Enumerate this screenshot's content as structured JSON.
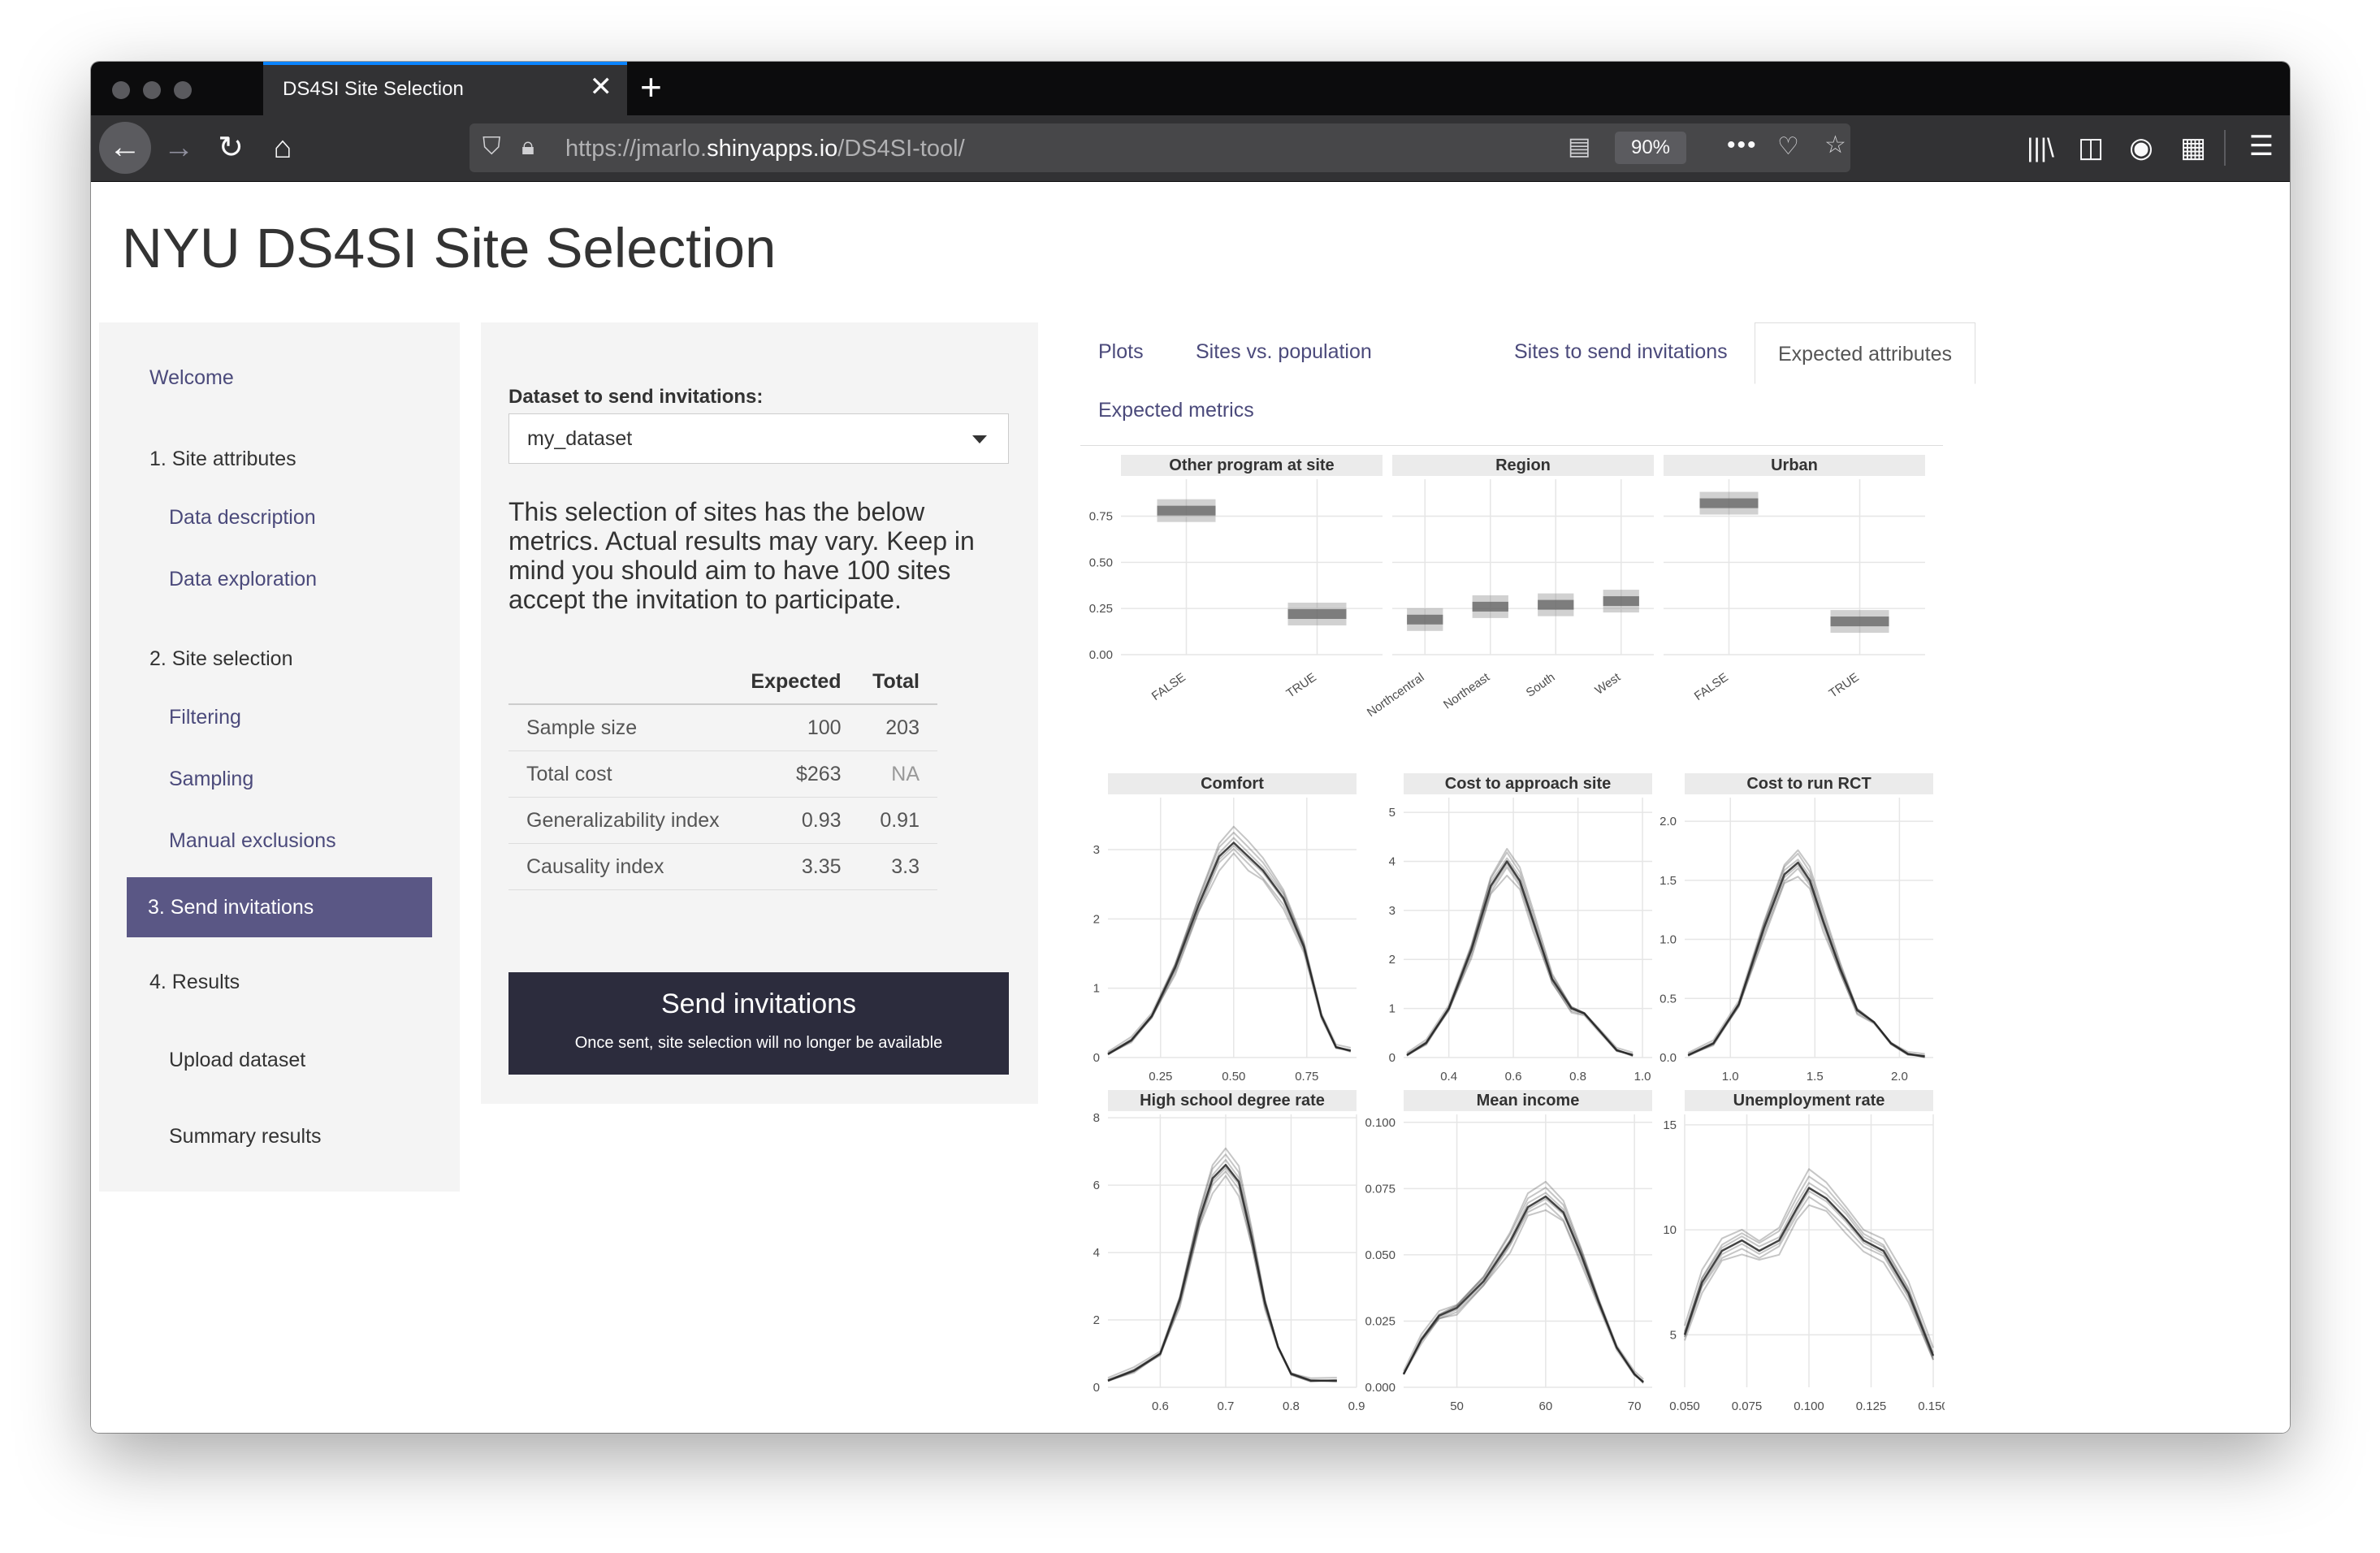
{
  "browser": {
    "tab_title": "DS4SI Site Selection",
    "tab_close": "✕",
    "new_tab": "+",
    "url_prefix": "https://jmarlo.",
    "url_host": "shinyapps.io",
    "url_path": "/DS4SI-tool/",
    "zoom": "90%",
    "more": "•••",
    "menu": "☰"
  },
  "page": {
    "title": "NYU DS4SI Site Selection"
  },
  "sidebar": {
    "welcome": "Welcome",
    "site_attributes": "1. Site attributes",
    "data_description": "Data description",
    "data_exploration": "Data exploration",
    "site_selection": "2. Site selection",
    "filtering": "Filtering",
    "sampling": "Sampling",
    "manual_exclusions": "Manual exclusions",
    "send_invitations": "3. Send invitations",
    "results": "4. Results",
    "upload_dataset": "Upload dataset",
    "summary_results": "Summary results"
  },
  "control": {
    "dataset_label": "Dataset to send invitations:",
    "dataset_value": "my_dataset",
    "description": "This selection of sites has the below metrics. Actual results may vary. Keep in mind you should aim to have 100 sites accept the invitation to participate.",
    "table": {
      "headers": [
        "",
        "Expected",
        "Total"
      ],
      "rows": [
        [
          "Sample size",
          "100",
          "203"
        ],
        [
          "Total cost",
          "$263",
          "NA"
        ],
        [
          "Generalizability index",
          "0.93",
          "0.91"
        ],
        [
          "Causality index",
          "3.35",
          "3.3"
        ]
      ]
    },
    "send_button": "Send invitations",
    "send_note": "Once sent, site selection will no longer be available"
  },
  "tabs": {
    "plots": "Plots",
    "sites_vs_population": "Sites vs. population",
    "sites_to_send": "Sites to send invitations",
    "expected_attributes": "Expected attributes",
    "expected_metrics": "Expected metrics"
  },
  "chart_data": [
    {
      "type": "bar",
      "title": "Other program at site",
      "categories": [
        "FALSE",
        "TRUE"
      ],
      "values": [
        0.78,
        0.22
      ],
      "yticks": [
        "0.00",
        "0.25",
        "0.50",
        "0.75"
      ],
      "ylim": [
        0,
        0.95
      ]
    },
    {
      "type": "bar",
      "title": "Region",
      "categories": [
        "Northcentral",
        "Northeast",
        "South",
        "West"
      ],
      "values": [
        0.19,
        0.26,
        0.27,
        0.29
      ],
      "ylim": [
        0,
        0.95
      ]
    },
    {
      "type": "bar",
      "title": "Urban",
      "categories": [
        "FALSE",
        "TRUE"
      ],
      "values": [
        0.82,
        0.18
      ],
      "ylim": [
        0,
        0.95
      ]
    },
    {
      "type": "line",
      "title": "Comfort",
      "xticks": [
        "0.25",
        "0.50",
        "0.75"
      ],
      "yticks": [
        "0",
        "1",
        "2",
        "3"
      ],
      "xlim": [
        0.07,
        0.92
      ],
      "ylim": [
        0,
        3.75
      ],
      "x": [
        0.07,
        0.15,
        0.22,
        0.3,
        0.38,
        0.45,
        0.5,
        0.55,
        0.6,
        0.67,
        0.74,
        0.8,
        0.85,
        0.9
      ],
      "y": [
        0.05,
        0.25,
        0.6,
        1.3,
        2.2,
        2.9,
        3.1,
        2.9,
        2.7,
        2.3,
        1.6,
        0.6,
        0.15,
        0.1
      ]
    },
    {
      "type": "line",
      "title": "Cost to approach site",
      "xticks": [
        "0.4",
        "0.6",
        "0.8",
        "1.0"
      ],
      "yticks": [
        "0",
        "1",
        "2",
        "3",
        "4",
        "5"
      ],
      "xlim": [
        0.26,
        1.03
      ],
      "ylim": [
        0,
        5.3
      ],
      "x": [
        0.27,
        0.33,
        0.4,
        0.47,
        0.53,
        0.58,
        0.62,
        0.66,
        0.72,
        0.78,
        0.82,
        0.86,
        0.92,
        0.97
      ],
      "y": [
        0.05,
        0.3,
        1.0,
        2.2,
        3.5,
        4.0,
        3.6,
        2.8,
        1.6,
        1.0,
        0.9,
        0.6,
        0.15,
        0.05
      ]
    },
    {
      "type": "line",
      "title": "Cost to run RCT",
      "xticks": [
        "1.0",
        "1.5",
        "2.0"
      ],
      "yticks": [
        "0.0",
        "0.5",
        "1.0",
        "1.5",
        "2.0"
      ],
      "xlim": [
        0.73,
        2.2
      ],
      "ylim": [
        0,
        2.2
      ],
      "x": [
        0.75,
        0.9,
        1.05,
        1.2,
        1.32,
        1.4,
        1.47,
        1.55,
        1.65,
        1.75,
        1.85,
        1.95,
        2.05,
        2.15
      ],
      "y": [
        0.02,
        0.12,
        0.45,
        1.1,
        1.55,
        1.65,
        1.5,
        1.15,
        0.75,
        0.4,
        0.3,
        0.12,
        0.03,
        0.01
      ]
    },
    {
      "type": "line",
      "title": "High school degree rate",
      "xticks": [
        "0.6",
        "0.7",
        "0.8",
        "0.9"
      ],
      "yticks": [
        "0",
        "2",
        "4",
        "6",
        "8"
      ],
      "xlim": [
        0.52,
        0.9
      ],
      "ylim": [
        0,
        8.1
      ],
      "x": [
        0.52,
        0.56,
        0.6,
        0.63,
        0.66,
        0.68,
        0.7,
        0.72,
        0.74,
        0.76,
        0.78,
        0.8,
        0.83,
        0.87
      ],
      "y": [
        0.2,
        0.5,
        1.0,
        2.6,
        5.0,
        6.2,
        6.6,
        6.1,
        4.4,
        2.5,
        1.2,
        0.4,
        0.2,
        0.2
      ]
    },
    {
      "type": "line",
      "title": "Mean income",
      "xticks": [
        "50",
        "60",
        "70"
      ],
      "yticks": [
        "0.000",
        "0.025",
        "0.050",
        "0.075",
        "0.100"
      ],
      "xlim": [
        44,
        72
      ],
      "ylim": [
        0,
        0.103
      ],
      "x": [
        44,
        46,
        48,
        50,
        53,
        56,
        58,
        60,
        62,
        64,
        66,
        68,
        70,
        71
      ],
      "y": [
        0.005,
        0.018,
        0.027,
        0.03,
        0.04,
        0.055,
        0.068,
        0.072,
        0.066,
        0.05,
        0.032,
        0.015,
        0.005,
        0.002
      ]
    },
    {
      "type": "line",
      "title": "Unemployment rate",
      "xticks": [
        "0.050",
        "0.075",
        "0.100",
        "0.125",
        "0.150"
      ],
      "yticks": [
        "5",
        "10",
        "15"
      ],
      "xlim": [
        0.05,
        0.15
      ],
      "ylim": [
        2.5,
        15.5
      ],
      "x": [
        0.05,
        0.057,
        0.065,
        0.073,
        0.08,
        0.088,
        0.095,
        0.1,
        0.107,
        0.115,
        0.122,
        0.13,
        0.14,
        0.15
      ],
      "y": [
        5.0,
        7.5,
        9.0,
        9.5,
        9.0,
        9.5,
        11.0,
        12.0,
        11.5,
        10.5,
        9.5,
        9.0,
        7.0,
        4.0
      ]
    }
  ]
}
